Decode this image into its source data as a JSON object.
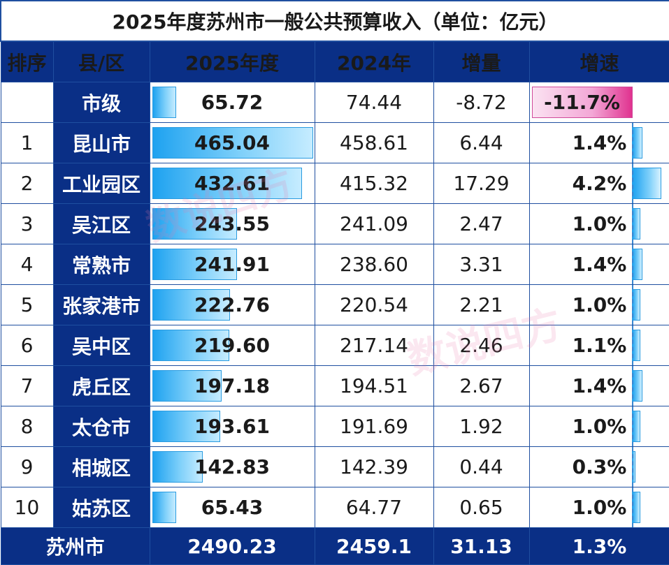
{
  "title": "2025年度苏州市一般公共预算收入（单位：亿元）",
  "headers": [
    "排序",
    "县/区",
    "2025年度",
    "2024年",
    "增量",
    "增速"
  ],
  "max_value_2025": 465.04,
  "max_growth_rate": 4.2,
  "rows": [
    {
      "rank": "",
      "county": "市级",
      "v2025": "65.72",
      "v2025_num": 65.72,
      "v2024": "74.44",
      "increase": "-8.72",
      "rate": "-11.7%",
      "rate_num": -11.7
    },
    {
      "rank": "1",
      "county": "昆山市",
      "v2025": "465.04",
      "v2025_num": 465.04,
      "v2024": "458.61",
      "increase": "6.44",
      "rate": "1.4%",
      "rate_num": 1.4
    },
    {
      "rank": "2",
      "county": "工业园区",
      "v2025": "432.61",
      "v2025_num": 432.61,
      "v2024": "415.32",
      "increase": "17.29",
      "rate": "4.2%",
      "rate_num": 4.2
    },
    {
      "rank": "3",
      "county": "吴江区",
      "v2025": "243.55",
      "v2025_num": 243.55,
      "v2024": "241.09",
      "increase": "2.47",
      "rate": "1.0%",
      "rate_num": 1.0
    },
    {
      "rank": "4",
      "county": "常熟市",
      "v2025": "241.91",
      "v2025_num": 241.91,
      "v2024": "238.60",
      "increase": "3.31",
      "rate": "1.4%",
      "rate_num": 1.4
    },
    {
      "rank": "5",
      "county": "张家港市",
      "v2025": "222.76",
      "v2025_num": 222.76,
      "v2024": "220.54",
      "increase": "2.21",
      "rate": "1.0%",
      "rate_num": 1.0
    },
    {
      "rank": "6",
      "county": "吴中区",
      "v2025": "219.60",
      "v2025_num": 219.6,
      "v2024": "217.14",
      "increase": "2.46",
      "rate": "1.1%",
      "rate_num": 1.1
    },
    {
      "rank": "7",
      "county": "虎丘区",
      "v2025": "197.18",
      "v2025_num": 197.18,
      "v2024": "194.51",
      "increase": "2.67",
      "rate": "1.4%",
      "rate_num": 1.4
    },
    {
      "rank": "8",
      "county": "太仓市",
      "v2025": "193.61",
      "v2025_num": 193.61,
      "v2024": "191.69",
      "increase": "1.92",
      "rate": "1.0%",
      "rate_num": 1.0
    },
    {
      "rank": "9",
      "county": "相城区",
      "v2025": "142.83",
      "v2025_num": 142.83,
      "v2024": "142.39",
      "increase": "0.44",
      "rate": "0.3%",
      "rate_num": 0.3
    },
    {
      "rank": "10",
      "county": "姑苏区",
      "v2025": "65.43",
      "v2025_num": 65.43,
      "v2024": "64.77",
      "increase": "0.65",
      "rate": "1.0%",
      "rate_num": 1.0
    }
  ],
  "total": {
    "label": "苏州市",
    "v2025": "2490.23",
    "v2024": "2459.1",
    "increase": "31.13",
    "rate": "1.3%"
  },
  "watermark": "数说四方",
  "colors": {
    "header_bg": "#0a2f86",
    "border": "#1f4fa0",
    "bar": "#1ea2f0",
    "negative_bar": "#e0328f"
  }
}
